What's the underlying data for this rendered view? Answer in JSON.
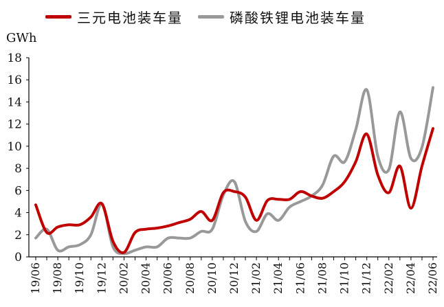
{
  "chart_data": {
    "type": "line",
    "unit_label": "GWh",
    "ylim": [
      0,
      18
    ],
    "yticks": [
      0,
      2,
      4,
      6,
      8,
      10,
      12,
      14,
      16,
      18
    ],
    "grid": false,
    "legend_position": "top",
    "categories": [
      "2019/06",
      "2019/07",
      "2019/08",
      "2019/09",
      "2019/10",
      "2019/11",
      "2019/12",
      "2020/01",
      "2020/02",
      "2020/03",
      "2020/04",
      "2020/05",
      "2020/06",
      "2020/07",
      "2020/08",
      "2020/09",
      "2020/10",
      "2020/11",
      "2020/12",
      "2021/01",
      "2021/02",
      "2021/03",
      "2021/04",
      "2021/05",
      "2021/06",
      "2021/07",
      "2021/08",
      "2021/09",
      "2021/10",
      "2021/11",
      "2021/12",
      "2022/01",
      "2022/02",
      "2022/03",
      "2022/04",
      "2022/05",
      "2022/06"
    ],
    "x_tick_labels": [
      "19/06",
      "19/08",
      "19/10",
      "19/12",
      "20/02",
      "20/04",
      "20/06",
      "20/08",
      "20/10",
      "20/12",
      "21/02",
      "21/04",
      "21/06",
      "21/08",
      "21/10",
      "21/12",
      "22/02",
      "22/04",
      "22/06"
    ],
    "series": [
      {
        "name": "三元电池装车量",
        "color": "#c00000",
        "values": [
          4.7,
          2.2,
          2.7,
          2.9,
          2.9,
          3.6,
          4.8,
          1.4,
          0.4,
          2.2,
          2.5,
          2.6,
          2.8,
          3.1,
          3.4,
          4.1,
          3.3,
          5.8,
          5.9,
          5.4,
          3.3,
          5.1,
          5.2,
          5.2,
          5.9,
          5.5,
          5.3,
          5.9,
          6.8,
          8.6,
          11.1,
          7.4,
          5.8,
          8.2,
          4.4,
          8.2,
          11.6
        ]
      },
      {
        "name": "磷酸铁锂电池装车量",
        "color": "#999999",
        "values": [
          1.7,
          2.5,
          0.6,
          0.9,
          1.1,
          2.0,
          4.8,
          0.9,
          0.3,
          0.6,
          0.9,
          0.9,
          1.7,
          1.7,
          1.7,
          2.3,
          2.5,
          5.6,
          6.8,
          3.2,
          2.3,
          3.9,
          3.3,
          4.5,
          5.0,
          5.5,
          6.5,
          9.1,
          8.6,
          11.5,
          15.1,
          9.1,
          7.9,
          13.1,
          8.9,
          9.9,
          15.3
        ]
      }
    ]
  }
}
